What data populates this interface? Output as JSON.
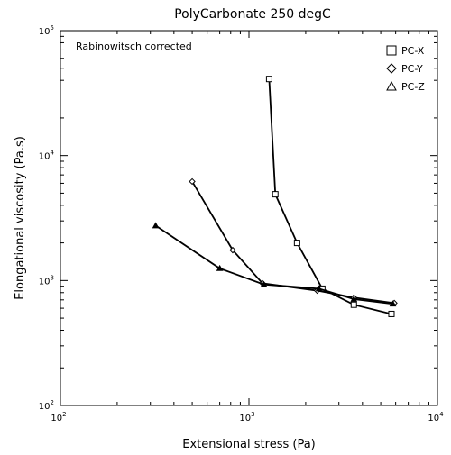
{
  "chart_data": {
    "type": "line",
    "title": "PolyCarbonate 250 degC",
    "annotation": "Rabinowitsch corrected",
    "xlabel": "Extensional stress (Pa)",
    "ylabel": "Elongational viscosity (Pa.s)",
    "xscale": "log",
    "yscale": "log",
    "xlim": [
      100,
      10000
    ],
    "ylim": [
      100,
      100000
    ],
    "xticks": [
      {
        "value": 100,
        "base": "10",
        "exp": "2"
      },
      {
        "value": 1000,
        "base": "10",
        "exp": "3"
      },
      {
        "value": 10000,
        "base": "10",
        "exp": "4"
      }
    ],
    "yticks": [
      {
        "value": 100,
        "base": "10",
        "exp": "2"
      },
      {
        "value": 1000,
        "base": "10",
        "exp": "3"
      },
      {
        "value": 10000,
        "base": "10",
        "exp": "4"
      },
      {
        "value": 100000,
        "base": "10",
        "exp": "5"
      }
    ],
    "grid": false,
    "legend_position": "top-right",
    "series": [
      {
        "name": "PC-X",
        "marker": "square",
        "x": [
          1280,
          1380,
          1800,
          2450,
          3600,
          5700
        ],
        "y": [
          41000,
          4900,
          2000,
          860,
          640,
          540
        ]
      },
      {
        "name": "PC-Y",
        "marker": "diamond",
        "x": [
          500,
          820,
          1180,
          2300,
          3600,
          5900
        ],
        "y": [
          6200,
          1750,
          950,
          830,
          730,
          660
        ]
      },
      {
        "name": "PC-Z",
        "marker": "triangle",
        "x": [
          320,
          700,
          1200,
          2350,
          3600,
          5800
        ],
        "y": [
          2750,
          1250,
          930,
          860,
          710,
          650
        ]
      }
    ]
  }
}
